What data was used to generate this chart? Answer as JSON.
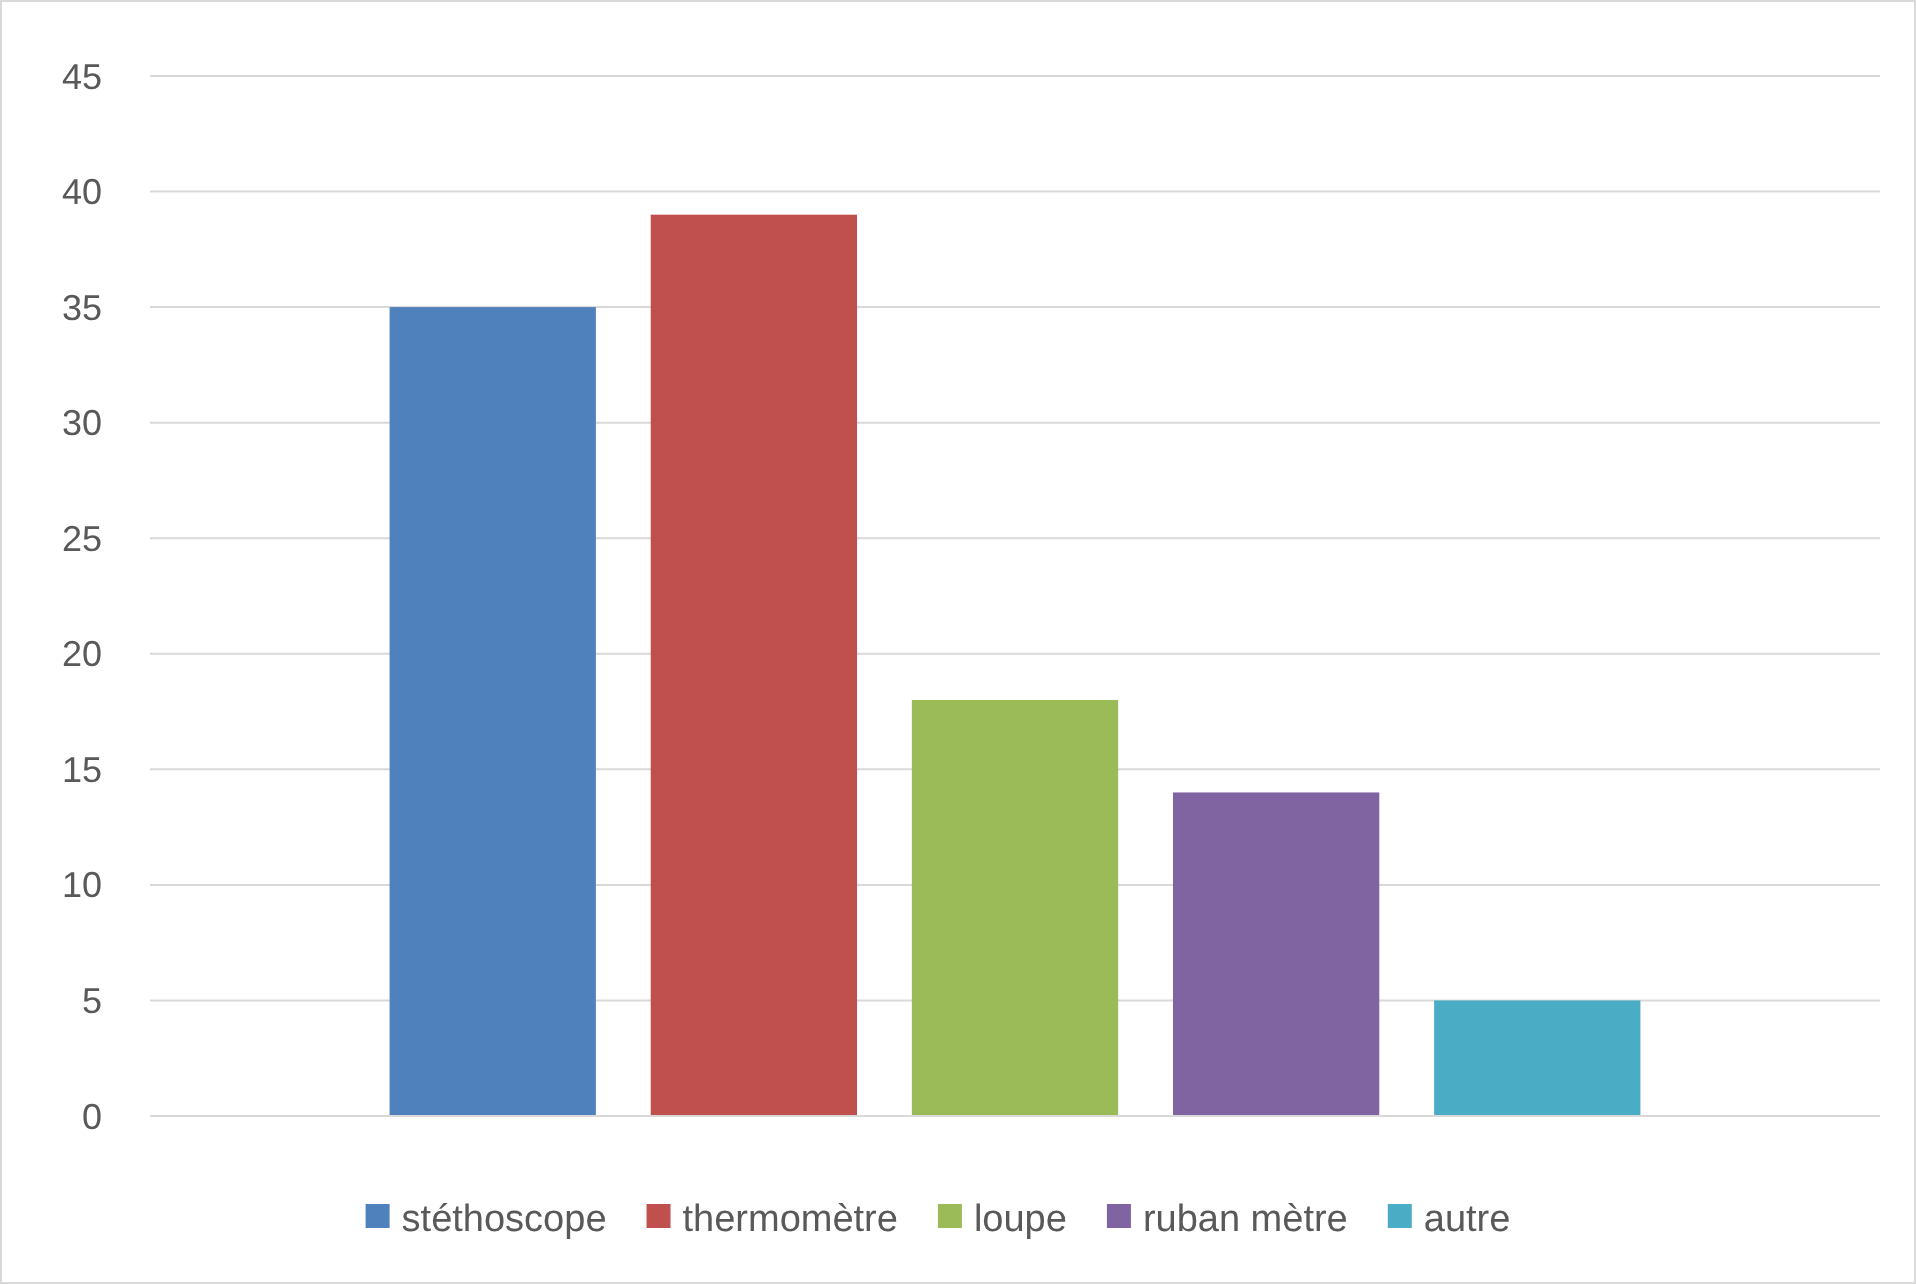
{
  "chart_data": {
    "type": "bar",
    "categories": [
      null
    ],
    "series": [
      {
        "name": "stéthoscope",
        "color": "#4f81bd",
        "values": [
          35
        ]
      },
      {
        "name": "thermomètre",
        "color": "#c0504d",
        "values": [
          39
        ]
      },
      {
        "name": "loupe",
        "color": "#9bbb59",
        "values": [
          18
        ]
      },
      {
        "name": "ruban mètre",
        "color": "#8064a2",
        "values": [
          14
        ]
      },
      {
        "name": "autre",
        "color": "#4bacc6",
        "values": [
          5
        ]
      }
    ],
    "ylim": [
      0,
      45
    ],
    "yticks": [
      0,
      5,
      10,
      15,
      20,
      25,
      30,
      35,
      40,
      45
    ],
    "grid": "y",
    "legend": "bottom"
  }
}
